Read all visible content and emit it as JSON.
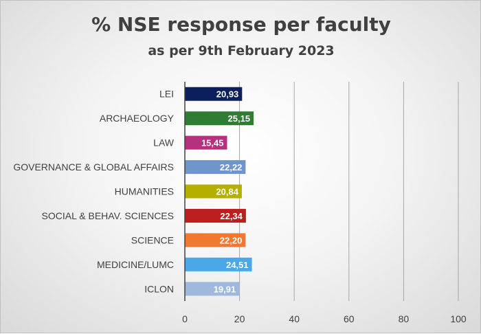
{
  "chart_data": {
    "type": "bar",
    "orientation": "horizontal",
    "title": "% NSE response per faculty",
    "subtitle": "as per 9th February 2023",
    "categories": [
      "LEI",
      "ARCHAEOLOGY",
      "LAW",
      "GOVERNANCE & GLOBAL AFFAIRS",
      "HUMANITIES",
      "SOCIAL & BEHAV. SCIENCES",
      "SCIENCE",
      "MEDICINE/LUMC",
      "ICLON"
    ],
    "values": [
      20.93,
      25.15,
      15.45,
      22.22,
      20.84,
      22.34,
      22.2,
      24.51,
      19.91
    ],
    "value_labels": [
      "20,93",
      "25,15",
      "15,45",
      "22,22",
      "20,84",
      "22,34",
      "22,20",
      "24,51",
      "19,91"
    ],
    "colors": [
      "#0b1f5c",
      "#2e7d32",
      "#b5307e",
      "#6f95cb",
      "#b5b000",
      "#bb1f1f",
      "#f07830",
      "#4aa8e6",
      "#9fb8dd"
    ],
    "xlim": [
      0,
      100
    ],
    "xticks": [
      0,
      20,
      40,
      60,
      80,
      100
    ],
    "grid": true,
    "legend": "none"
  }
}
